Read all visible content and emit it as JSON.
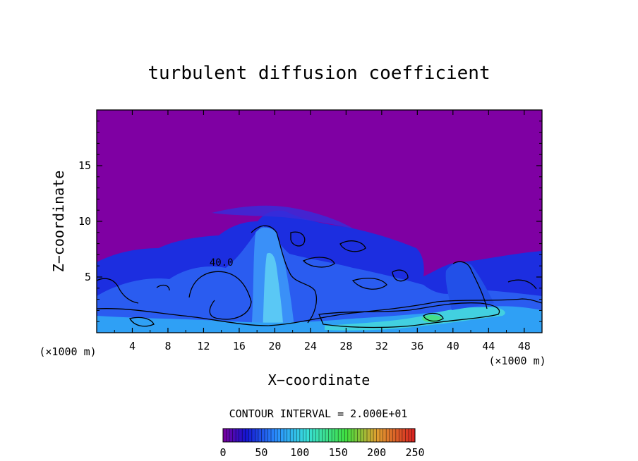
{
  "chart_data": {
    "type": "heatmap",
    "title": "turbulent diffusion coefficient",
    "xlabel": "X−coordinate",
    "ylabel": "Z−coordinate",
    "x_unit_left": "(×1000 m)",
    "x_unit_right": "(×1000 m)",
    "xlim": [
      0,
      50
    ],
    "ylim": [
      0,
      20
    ],
    "x_ticks": [
      4,
      8,
      12,
      16,
      20,
      24,
      28,
      32,
      36,
      40,
      44,
      48
    ],
    "y_ticks": [
      5,
      10,
      15
    ],
    "contour_label": "40.0",
    "contour_label_pos": [
      14,
      6
    ],
    "contour_interval_text": "CONTOUR INTERVAL = 2.000E+01",
    "colorbar": {
      "min": 0,
      "max": 250,
      "ticks": [
        0,
        50,
        100,
        150,
        200,
        250
      ],
      "stops": [
        {
          "v": 0,
          "color": "#7a009c"
        },
        {
          "v": 30,
          "color": "#1414d2"
        },
        {
          "v": 70,
          "color": "#2a90ff"
        },
        {
          "v": 110,
          "color": "#38e0d8"
        },
        {
          "v": 160,
          "color": "#40e040"
        },
        {
          "v": 200,
          "color": "#e0a030"
        },
        {
          "v": 250,
          "color": "#d82020"
        }
      ]
    },
    "background_color": "#7f00a3"
  }
}
